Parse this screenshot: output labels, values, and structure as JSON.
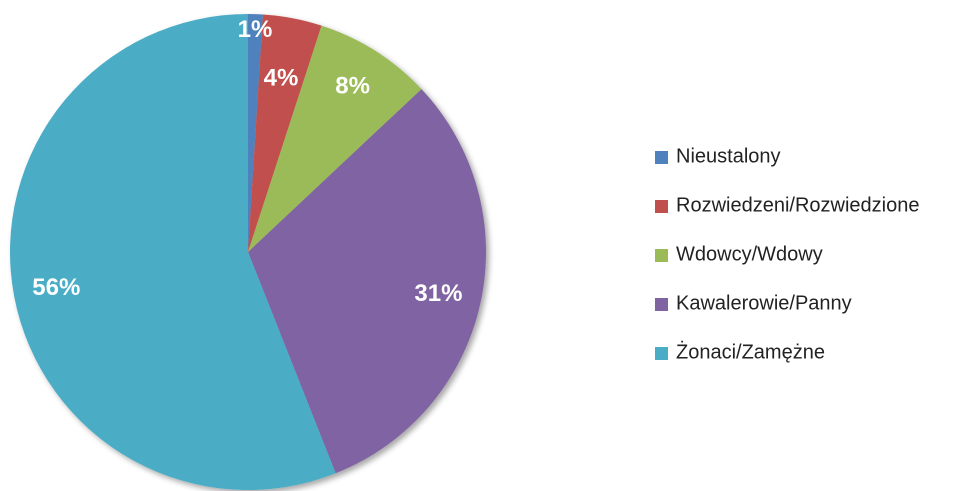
{
  "chart_data": {
    "type": "pie",
    "categories": [
      "Nieustalony",
      "Rozwiedzeni/Rozwiedzione",
      "Wdowcy/Wdowy",
      "Kawalerowie/Panny",
      "Żonaci/Zamężne"
    ],
    "values": [
      1,
      4,
      8,
      31,
      56
    ],
    "value_labels": [
      "1%",
      "4%",
      "8%",
      "31%",
      "56%"
    ],
    "colors": [
      "#4f81bd",
      "#c0504d",
      "#9bbb59",
      "#8064a2",
      "#4bacc6"
    ],
    "legend": "right"
  }
}
